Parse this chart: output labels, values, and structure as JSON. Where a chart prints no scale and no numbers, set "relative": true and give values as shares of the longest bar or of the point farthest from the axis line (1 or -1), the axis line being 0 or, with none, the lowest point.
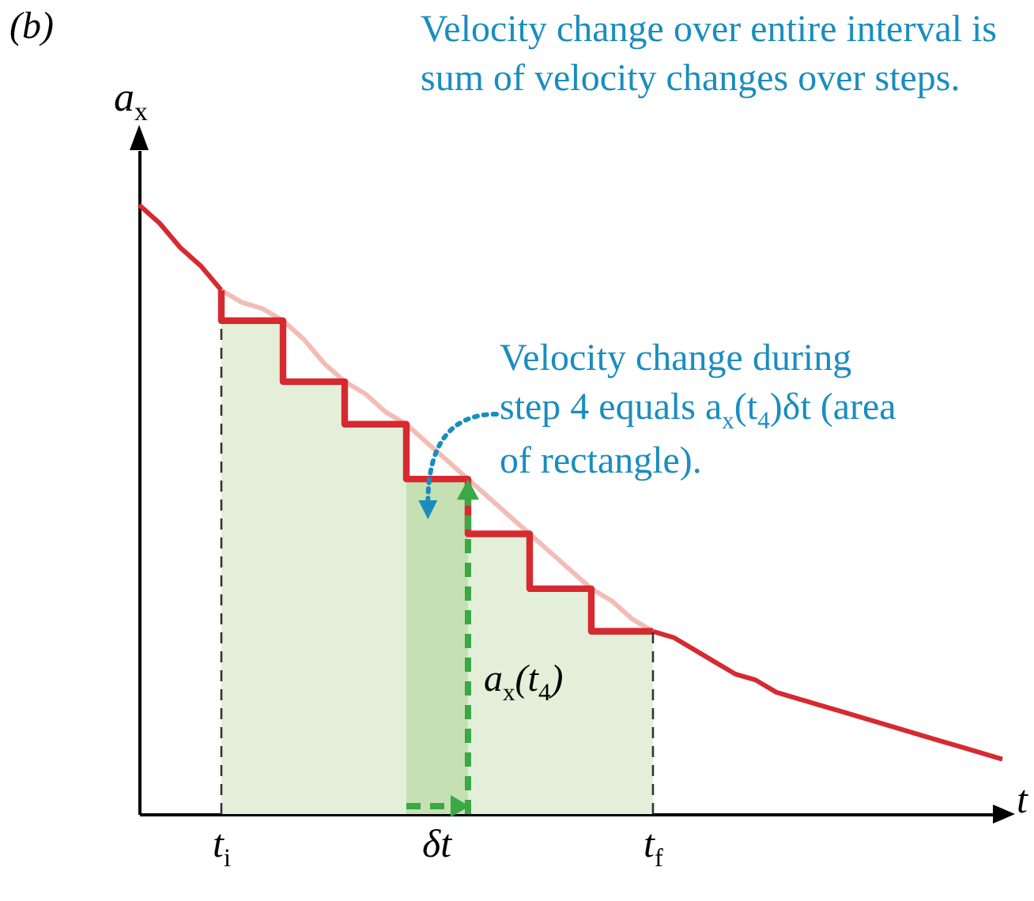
{
  "chart_data": {
    "type": "line",
    "title": "Velocity change over entire interval is sum of velocity changes over steps.",
    "xlabel": "t",
    "ylabel": "a$_{x}$",
    "relative": true,
    "categories": [
      null,
      null,
      null,
      null,
      "t$_{i}$",
      null,
      null,
      null,
      null,
      null,
      null,
      null,
      null,
      null,
      null,
      null,
      null,
      null,
      null,
      null,
      null,
      null,
      null,
      null,
      null,
      "t$_{f}$",
      null,
      null,
      null,
      null,
      null,
      null,
      null,
      null,
      null,
      null,
      null,
      null,
      null,
      null,
      null,
      null,
      null
    ],
    "annotations": [
      "(b)",
      "δt",
      "Velocity change during step 4 equals a$_{x}$(t$_{4}$)δt (area of rectangle).",
      "a$_{x}$(t$_{4}$)"
    ],
    "grid": false,
    "series": [
      {
        "type": "area",
        "color": "#e3efd9",
        "values": [
          null,
          null,
          null,
          null,
          0.81,
          0.81,
          0.81,
          0.81,
          0.71,
          0.71,
          0.71,
          0.64,
          0.64,
          0.64,
          0.55,
          0.55,
          0.55,
          0.46,
          0.46,
          0.46,
          0.37,
          0.37,
          0.37,
          0.3,
          0.3,
          0.3,
          null,
          null,
          null,
          null,
          null,
          null,
          null,
          null,
          null,
          null,
          null,
          null,
          null,
          null,
          null,
          null,
          null
        ]
      },
      {
        "type": "area",
        "color": "#c5e0b3",
        "values": [
          null,
          null,
          null,
          null,
          null,
          null,
          null,
          null,
          null,
          null,
          null,
          null,
          null,
          0.55,
          0.55,
          0.55,
          0.55,
          null,
          null,
          null,
          null,
          null,
          null,
          null,
          null,
          null,
          null,
          null,
          null,
          null,
          null,
          null,
          null,
          null,
          null,
          null,
          null,
          null,
          null,
          null,
          null,
          null,
          null
        ]
      },
      {
        "color": "#d62a30",
        "values": [
          1,
          0.97,
          0.93,
          0.9,
          0.86,
          null,
          null,
          null,
          null,
          null,
          null,
          null,
          null,
          null,
          null,
          null,
          null,
          null,
          null,
          null,
          null,
          null,
          null,
          null,
          null,
          null,
          null,
          null,
          null,
          null,
          null,
          null,
          null,
          null,
          null,
          null,
          null,
          null,
          null,
          null,
          null,
          null,
          null
        ]
      },
      {
        "color": "#f2bdb5",
        "values": [
          null,
          null,
          null,
          null,
          0.86,
          0.84,
          0.83,
          0.81,
          0.78,
          0.74,
          0.71,
          0.69,
          0.66,
          0.64,
          0.61,
          0.58,
          0.55,
          0.52,
          0.49,
          0.46,
          0.43,
          0.4,
          0.37,
          0.35,
          0.32,
          0.3,
          null,
          null,
          null,
          null,
          null,
          null,
          null,
          null,
          null,
          null,
          null,
          null,
          null,
          null,
          null,
          null,
          null
        ]
      },
      {
        "color": "#d62a30",
        "values": [
          null,
          null,
          null,
          null,
          null,
          null,
          null,
          null,
          null,
          null,
          null,
          null,
          null,
          null,
          null,
          null,
          null,
          null,
          null,
          null,
          null,
          null,
          null,
          null,
          null,
          0.3,
          0.29,
          0.27,
          0.25,
          0.23,
          0.22,
          0.2,
          0.19,
          0.18,
          0.17,
          0.16,
          0.15,
          0.14,
          0.13,
          0.12,
          0.11,
          0.1,
          0.09
        ]
      },
      {
        "type": "step",
        "color": "#d62a30",
        "values": [
          null,
          null,
          null,
          null,
          0.86,
          0.81,
          0.81,
          0.81,
          0.71,
          0.71,
          0.71,
          0.64,
          0.64,
          0.64,
          0.55,
          0.55,
          0.55,
          0.46,
          0.46,
          0.46,
          0.37,
          0.37,
          0.37,
          0.3,
          0.3,
          0.3,
          null,
          null,
          null,
          null,
          null,
          null,
          null,
          null,
          null,
          null,
          null,
          null,
          null,
          null,
          null,
          null,
          null
        ]
      }
    ]
  }
}
